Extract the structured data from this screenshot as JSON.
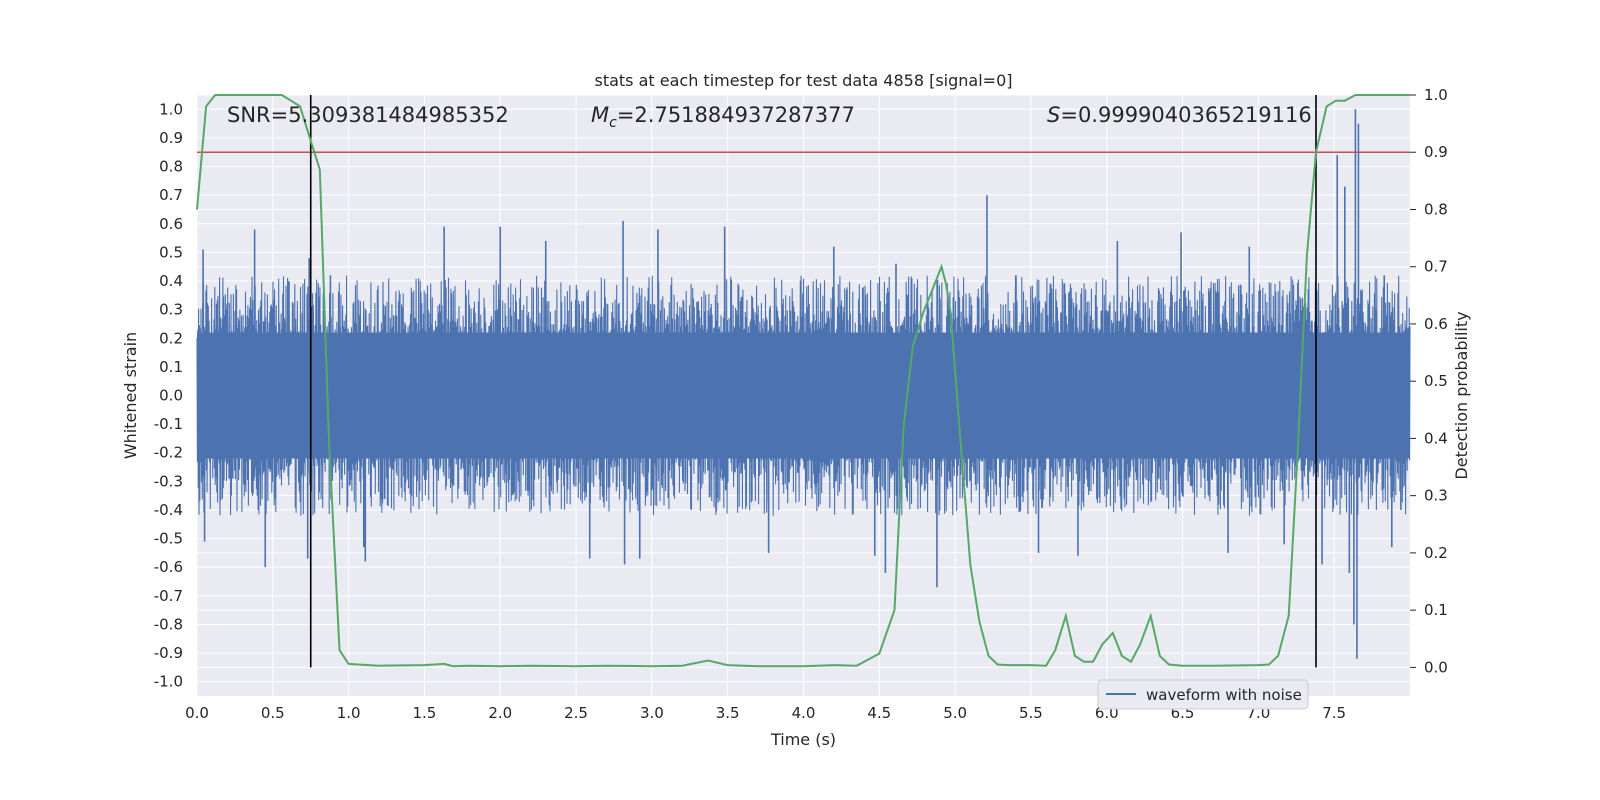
{
  "chart_data": {
    "type": "line",
    "title": "stats at each timestep for test data 4858 [signal=0]",
    "xlabel": "Time (s)",
    "ylabel": "Whitened strain",
    "y2label": "Detection probability",
    "xlim": [
      0.0,
      8.0
    ],
    "ylim": [
      -1.05,
      1.05
    ],
    "y2lim": [
      -0.05,
      1.0
    ],
    "xticks": [
      "0.0",
      "0.5",
      "1.0",
      "1.5",
      "2.0",
      "2.5",
      "3.0",
      "3.5",
      "4.0",
      "4.5",
      "5.0",
      "5.5",
      "6.0",
      "6.5",
      "7.0",
      "7.5"
    ],
    "yticks": [
      "1.0",
      "0.9",
      "0.8",
      "0.7",
      "0.6",
      "0.5",
      "0.4",
      "0.3",
      "0.2",
      "0.1",
      "0.0",
      "-0.1",
      "-0.2",
      "-0.3",
      "-0.4",
      "-0.5",
      "-0.6",
      "-0.7",
      "-0.8",
      "-0.9",
      "-1.0"
    ],
    "y2ticks": [
      "1.0",
      "0.9",
      "0.8",
      "0.7",
      "0.6",
      "0.5",
      "0.4",
      "0.3",
      "0.2",
      "0.1",
      "0.0"
    ],
    "grid": true,
    "legend_position": "bottom-right",
    "annotations": {
      "snr": "SNR=5.309381484985352",
      "mc_prefix": "M",
      "mc_sub": "c",
      "mc_value": "=2.751884937287377",
      "s_prefix": "S",
      "s_value": "=0.9999040365219116"
    },
    "threshold": {
      "y2": 0.9,
      "color": "#c44e52"
    },
    "vertical_lines": {
      "x": [
        0.75,
        7.38
      ],
      "y2_range": [
        0.0,
        1.0
      ],
      "color": "#000000"
    },
    "series": [
      {
        "name": "waveform with noise",
        "axis": "left",
        "color": "#4c72b0",
        "spikes": [
          {
            "x": 0.04,
            "y": 0.51
          },
          {
            "x": 0.05,
            "y": -0.51
          },
          {
            "x": 0.38,
            "y": 0.58
          },
          {
            "x": 0.45,
            "y": -0.6
          },
          {
            "x": 0.73,
            "y": -0.57
          },
          {
            "x": 0.74,
            "y": 0.48
          },
          {
            "x": 0.88,
            "y": 0.42
          },
          {
            "x": 1.1,
            "y": -0.53
          },
          {
            "x": 1.11,
            "y": -0.58
          },
          {
            "x": 1.63,
            "y": 0.59
          },
          {
            "x": 2.0,
            "y": 0.59
          },
          {
            "x": 2.3,
            "y": 0.54
          },
          {
            "x": 2.59,
            "y": -0.57
          },
          {
            "x": 2.81,
            "y": 0.61
          },
          {
            "x": 2.82,
            "y": -0.59
          },
          {
            "x": 2.92,
            "y": -0.57
          },
          {
            "x": 3.04,
            "y": 0.58
          },
          {
            "x": 3.48,
            "y": 0.59
          },
          {
            "x": 3.77,
            "y": -0.55
          },
          {
            "x": 4.2,
            "y": 0.52
          },
          {
            "x": 4.47,
            "y": -0.56
          },
          {
            "x": 4.54,
            "y": -0.62
          },
          {
            "x": 4.61,
            "y": 0.46
          },
          {
            "x": 4.88,
            "y": -0.67
          },
          {
            "x": 5.21,
            "y": 0.7
          },
          {
            "x": 5.4,
            "y": 0.42
          },
          {
            "x": 5.55,
            "y": -0.55
          },
          {
            "x": 5.81,
            "y": -0.56
          },
          {
            "x": 6.07,
            "y": 0.54
          },
          {
            "x": 6.49,
            "y": 0.57
          },
          {
            "x": 6.8,
            "y": -0.55
          },
          {
            "x": 6.94,
            "y": 0.52
          },
          {
            "x": 7.17,
            "y": -0.52
          },
          {
            "x": 7.42,
            "y": -0.59
          },
          {
            "x": 7.52,
            "y": 0.84
          },
          {
            "x": 7.57,
            "y": 0.73
          },
          {
            "x": 7.6,
            "y": -0.62
          },
          {
            "x": 7.64,
            "y": 1.0
          },
          {
            "x": 7.65,
            "y": -0.92
          },
          {
            "x": 7.63,
            "y": -0.8
          },
          {
            "x": 7.66,
            "y": 0.95
          },
          {
            "x": 7.83,
            "y": 0.42
          },
          {
            "x": 7.88,
            "y": -0.53
          },
          {
            "x": 7.94,
            "y": -0.4
          }
        ]
      },
      {
        "name": "Detection probability",
        "axis": "right",
        "color": "#55a868",
        "x": [
          0.0,
          0.06,
          0.12,
          0.18,
          0.25,
          0.31,
          0.37,
          0.44,
          0.5,
          0.56,
          0.62,
          0.68,
          0.75,
          0.81,
          0.87,
          0.94,
          1.0,
          1.2,
          1.5,
          1.63,
          1.69,
          1.8,
          2.0,
          2.2,
          2.5,
          2.7,
          3.0,
          3.2,
          3.37,
          3.5,
          3.7,
          4.0,
          4.2,
          4.35,
          4.5,
          4.6,
          4.66,
          4.72,
          4.79,
          4.85,
          4.91,
          4.94,
          4.97,
          5.04,
          5.1,
          5.16,
          5.22,
          5.28,
          5.35,
          5.5,
          5.6,
          5.66,
          5.73,
          5.79,
          5.85,
          5.91,
          5.97,
          6.04,
          6.1,
          6.16,
          6.22,
          6.29,
          6.35,
          6.41,
          6.5,
          6.7,
          7.0,
          7.07,
          7.13,
          7.2,
          7.26,
          7.32,
          7.38,
          7.45,
          7.51,
          7.57,
          7.64,
          7.7,
          7.76,
          7.82,
          7.88,
          7.94,
          8.0
        ],
        "y": [
          0.8,
          0.98,
          1.0,
          1.0,
          1.0,
          1.0,
          1.0,
          1.0,
          1.0,
          1.0,
          0.99,
          0.98,
          0.92,
          0.87,
          0.4,
          0.03,
          0.006,
          0.003,
          0.004,
          0.006,
          0.002,
          0.003,
          0.002,
          0.003,
          0.002,
          0.003,
          0.002,
          0.003,
          0.012,
          0.004,
          0.002,
          0.002,
          0.004,
          0.003,
          0.024,
          0.1,
          0.42,
          0.56,
          0.62,
          0.66,
          0.7,
          0.67,
          0.62,
          0.38,
          0.18,
          0.08,
          0.02,
          0.005,
          0.004,
          0.004,
          0.003,
          0.03,
          0.09,
          0.02,
          0.01,
          0.01,
          0.04,
          0.06,
          0.02,
          0.01,
          0.04,
          0.09,
          0.02,
          0.005,
          0.003,
          0.003,
          0.004,
          0.005,
          0.02,
          0.09,
          0.38,
          0.72,
          0.9,
          0.98,
          0.99,
          0.99,
          1.0,
          1.0,
          1.0,
          1.0,
          1.0,
          1.0,
          1.0
        ]
      }
    ]
  }
}
